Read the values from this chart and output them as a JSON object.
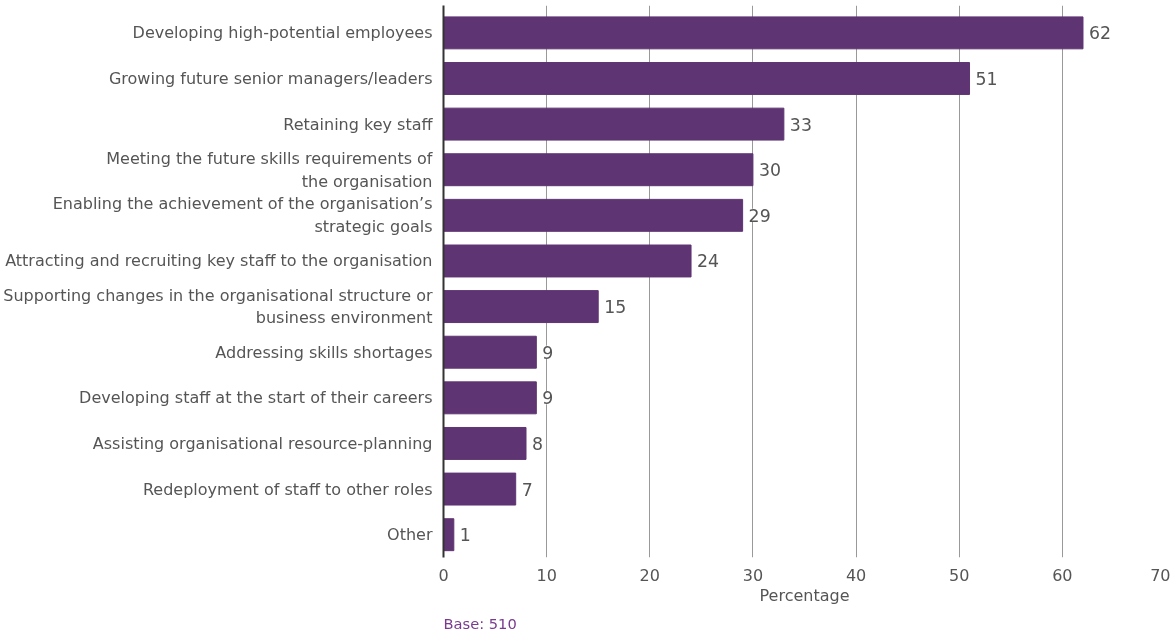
{
  "chart_data": {
    "type": "bar",
    "orientation": "horizontal",
    "categories": [
      "Developing high-potential employees",
      "Growing future senior managers/leaders",
      "Retaining key staff",
      "Meeting the future skills requirements of\nthe organisation",
      "Enabling the achievement of the organisation’s\nstrategic goals",
      "Attracting and recruiting key staff to the organisation",
      "Supporting changes in the organisational structure or\nbusiness environment",
      "Addressing skills shortages",
      "Developing staff at the start of their careers",
      "Assisting organisational resource-planning",
      "Redeployment of staff to other roles",
      "Other"
    ],
    "values": [
      62,
      51,
      33,
      30,
      29,
      24,
      15,
      9,
      9,
      8,
      7,
      1
    ],
    "color": "#5f3473",
    "xlim": [
      0,
      70
    ],
    "xticks": [
      0,
      10,
      20,
      30,
      40,
      50,
      60,
      70
    ],
    "xlabel": "Percentage",
    "grid": "x",
    "data_labels": true,
    "annotations": [
      "Base: 510"
    ]
  }
}
